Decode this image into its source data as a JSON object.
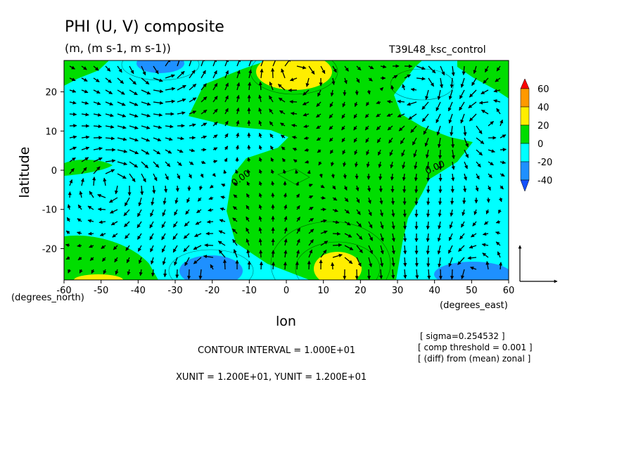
{
  "chart_data": {
    "type": "heatmap",
    "title": "PHI (U, V) composite",
    "subtitle": "(m, (m s-1, m s-1))",
    "run_label": "T39L48_ksc_control",
    "xlabel": "lon",
    "ylabel": "latitude",
    "x_unit_label": "(degrees_east)",
    "y_unit_label": "(degrees_north)",
    "xlim": [
      -60,
      60
    ],
    "ylim": [
      -28,
      28
    ],
    "x_ticks": [
      "-60",
      "-50",
      "-40",
      "-30",
      "-20",
      "-10",
      "0",
      "10",
      "20",
      "30",
      "40",
      "50",
      "60"
    ],
    "y_ticks": [
      "20",
      "10",
      "0",
      "-10",
      "-20"
    ],
    "contour_label": "0.00",
    "colorbar": {
      "labels": [
        "60",
        "40",
        "20",
        "0",
        "-20",
        "-40"
      ],
      "colors": [
        "#ff0000",
        "#ff9900",
        "#ffee00",
        "#00dd00",
        "#00ffff",
        "#1e90ff",
        "#1450ff"
      ]
    },
    "regions": {
      "background_level": "-20 to 0",
      "positive": [
        {
          "level": "0 to 20",
          "description": "central land-like pattern"
        },
        {
          "level": "20 to 40",
          "center": [
            -5,
            26
          ]
        },
        {
          "level": "20 to 40",
          "center": [
            13,
            -23
          ]
        }
      ],
      "negative": [
        {
          "level": "-40 to -20",
          "center": [
            -42,
            27
          ]
        },
        {
          "level": "-40 to -20",
          "center": [
            -25,
            -24
          ]
        },
        {
          "level": "-40 to -20",
          "center": [
            50,
            -25
          ]
        }
      ]
    },
    "vector_reference": {
      "xunit": "1.200E+01",
      "yunit": "1.200E+01"
    }
  },
  "annotations": {
    "contour_interval": "CONTOUR INTERVAL = 1.000E+01",
    "units": "XUNIT = 1.200E+01, YUNIT = 1.200E+01",
    "notes": [
      "[ sigma=0.254532 ]",
      "[ comp threshold = 0.001 ]",
      "[ (diff) from (mean) zonal ]"
    ]
  }
}
